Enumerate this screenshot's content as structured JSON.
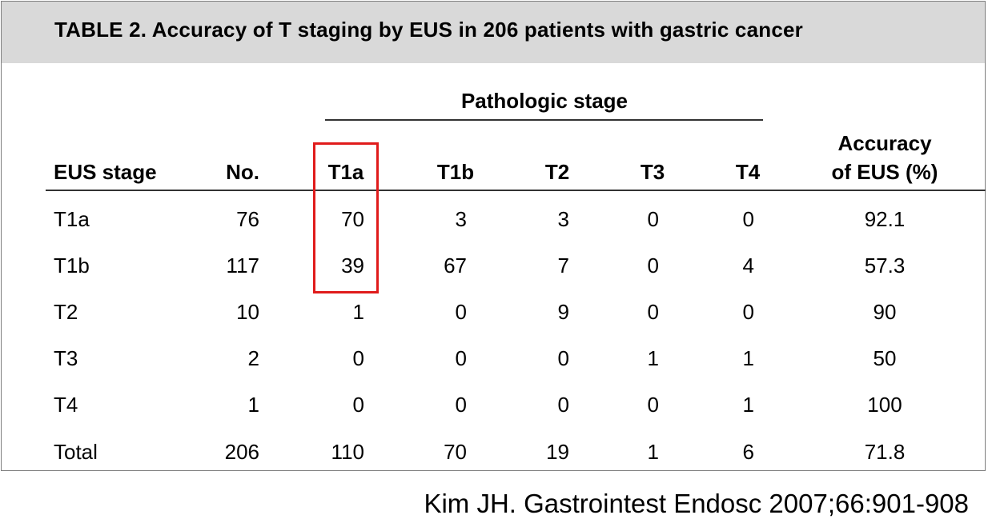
{
  "table": {
    "title": "TABLE 2. Accuracy of T staging by EUS in 206 patients with gastric cancer",
    "group_header": "Pathologic stage",
    "columns": {
      "eus_stage": "EUS stage",
      "no": "No.",
      "t1a": "T1a",
      "t1b": "T1b",
      "t2": "T2",
      "t3": "T3",
      "t4": "T4",
      "accuracy_line1": "Accuracy",
      "accuracy_line2": "of EUS (%)"
    },
    "rows": [
      {
        "stage": "T1a",
        "no": "76",
        "t1a": "70",
        "t1b": "3",
        "t2": "3",
        "t3": "0",
        "t4": "0",
        "accuracy": "92.1"
      },
      {
        "stage": "T1b",
        "no": "117",
        "t1a": "39",
        "t1b": "67",
        "t2": "7",
        "t3": "0",
        "t4": "4",
        "accuracy": "57.3"
      },
      {
        "stage": "T2",
        "no": "10",
        "t1a": "1",
        "t1b": "0",
        "t2": "9",
        "t3": "0",
        "t4": "0",
        "accuracy": "90"
      },
      {
        "stage": "T3",
        "no": "2",
        "t1a": "0",
        "t1b": "0",
        "t2": "0",
        "t3": "1",
        "t4": "1",
        "accuracy": "50"
      },
      {
        "stage": "T4",
        "no": "1",
        "t1a": "0",
        "t1b": "0",
        "t2": "0",
        "t3": "0",
        "t4": "1",
        "accuracy": "100"
      },
      {
        "stage": "Total",
        "no": "206",
        "t1a": "110",
        "t1b": "70",
        "t2": "19",
        "t3": "1",
        "t4": "6",
        "accuracy": "71.8"
      }
    ]
  },
  "citation": "Kim JH. Gastrointest Endosc 2007;66:901-908",
  "colors": {
    "title_band": "#d9d9d9",
    "highlight_box": "#e01b1b"
  }
}
